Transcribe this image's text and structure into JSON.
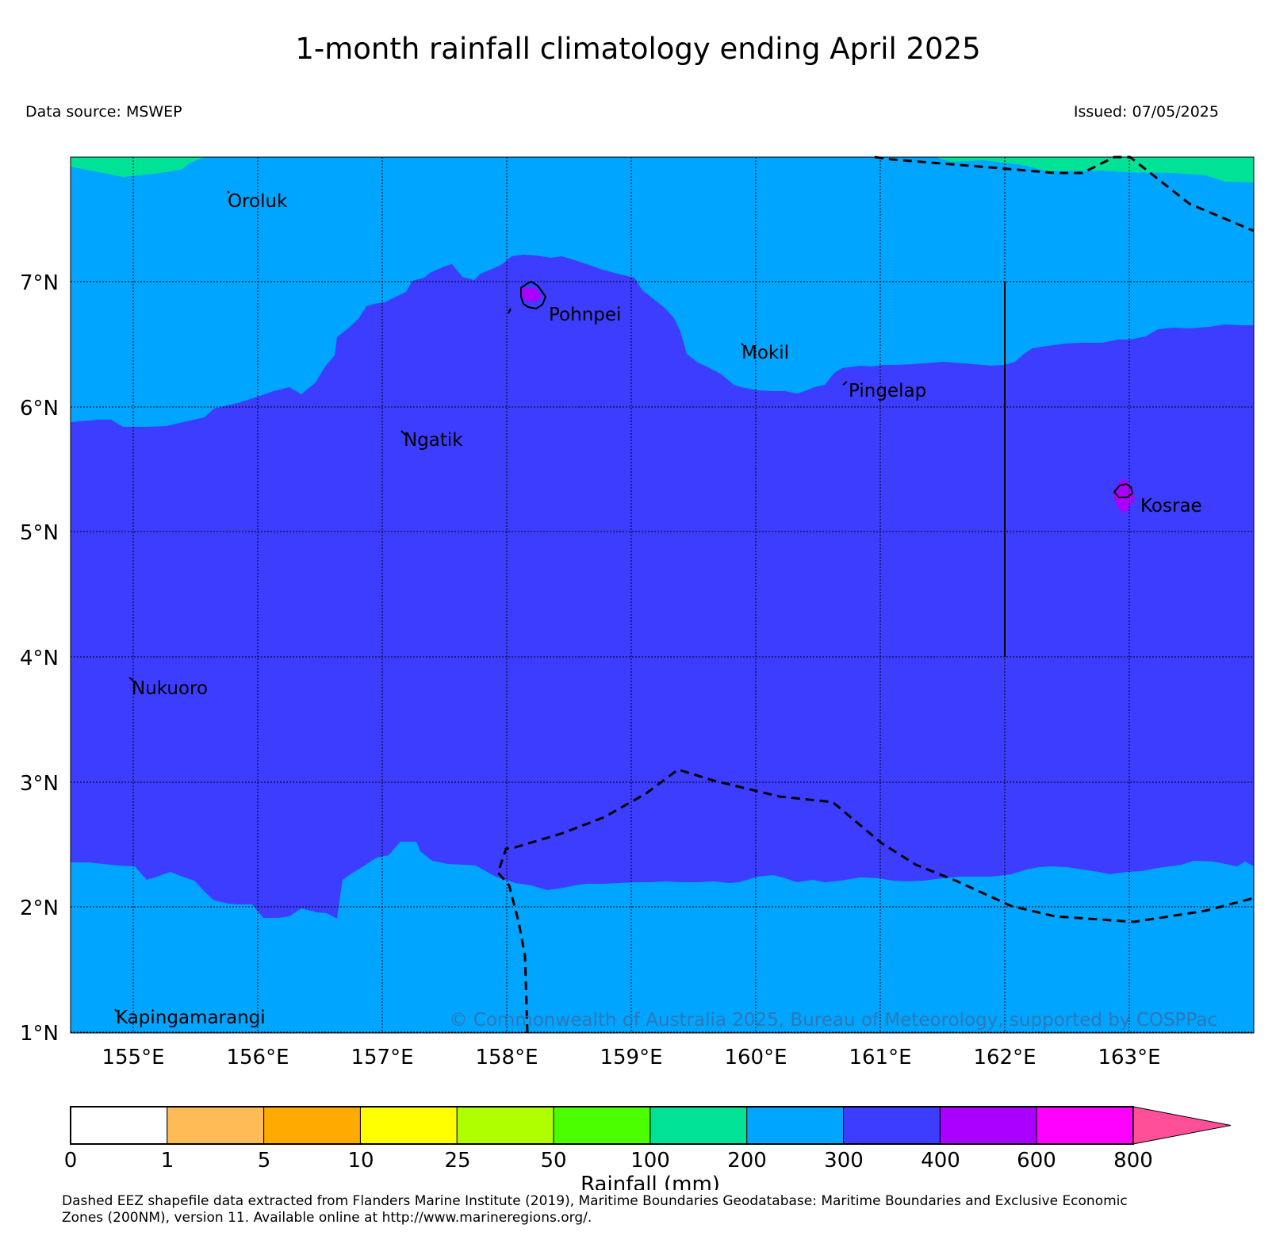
{
  "title": "1-month rainfall climatology ending April 2025",
  "data_source": "Data source: MSWEP",
  "issued": "Issued: 07/05/2025",
  "map": {
    "region_lon": [
      154.5,
      164.0
    ],
    "region_lat": [
      1.0,
      8.0
    ],
    "lon_ticks": [
      "155°E",
      "156°E",
      "157°E",
      "158°E",
      "159°E",
      "160°E",
      "161°E",
      "162°E",
      "163°E"
    ],
    "lat_ticks": [
      "7°N",
      "6°N",
      "5°N",
      "4°N",
      "3°N",
      "2°N",
      "1°N"
    ],
    "places": [
      "Oroluk",
      "Pohnpei",
      "Mokil",
      "Pingelap",
      "Ngatik",
      "Kosrae",
      "Nukuoro",
      "Kapingamarangi"
    ],
    "copyright": "© Commonwealth of Australia 2025, Bureau of Meteorology, supported by COSPPac",
    "colors": {
      "c100_200": "#00e396",
      "c200_300": "#00a5ff",
      "c300_400": "#3d3dff",
      "c400_600": "#aa00ff"
    }
  },
  "colorbar": {
    "label": "Rainfall (mm)",
    "ticks": [
      "0",
      "1",
      "5",
      "10",
      "25",
      "50",
      "100",
      "200",
      "300",
      "400",
      "600",
      "800"
    ],
    "colors": [
      "#ffffff",
      "#ffbb55",
      "#ffaa00",
      "#ffff00",
      "#b0ff00",
      "#4cff00",
      "#00e396",
      "#00a5ff",
      "#3d3dff",
      "#aa00ff",
      "#ff00ff"
    ],
    "extend_color": "#ff4f99"
  },
  "footnote": [
    "Dashed EEZ shapefile data extracted from Flanders Marine Institute (2019), Maritime Boundaries Geodatabase: Maritime Boundaries and Exclusive Economic",
    "Zones (200NM), version 11. Available online at http://www.marineregions.org/."
  ]
}
